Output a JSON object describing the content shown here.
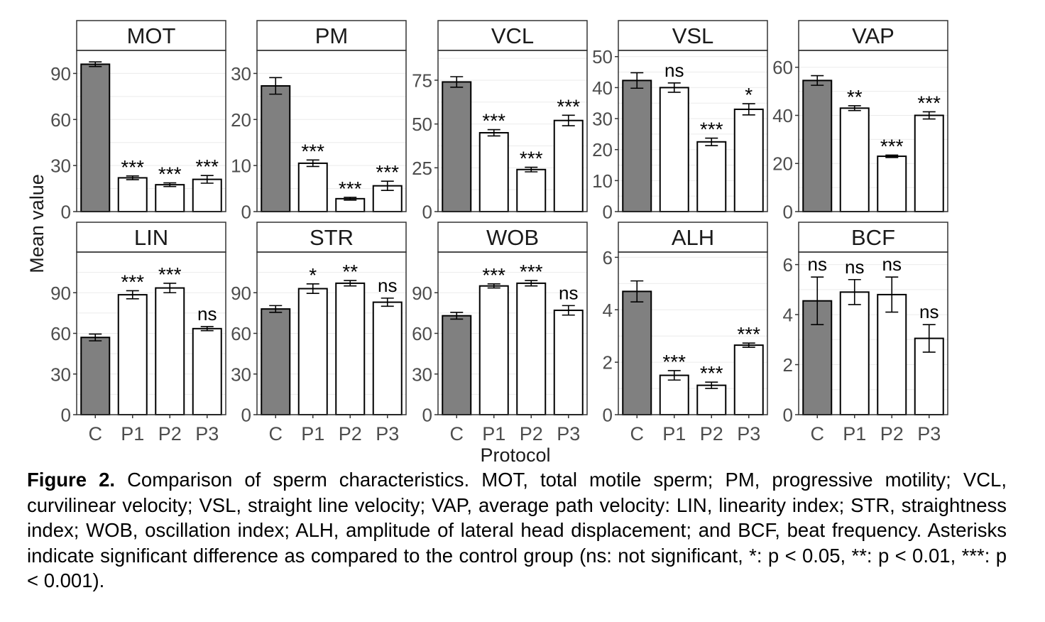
{
  "chart_data": {
    "type": "bar",
    "x_title": "Protocol",
    "y_title": "Mean value",
    "categories": [
      "C",
      "P1",
      "P2",
      "P3"
    ],
    "panels": [
      {
        "title": "MOT",
        "ylim": [
          0,
          105
        ],
        "ticks": [
          0,
          30,
          60,
          90
        ],
        "tick_labels": [
          "0",
          "30",
          "60",
          "90"
        ],
        "values": [
          96,
          22,
          17.5,
          21
        ],
        "errors": [
          1.5,
          1.2,
          1.2,
          2.5
        ],
        "significance": [
          "",
          "***",
          "***",
          "***"
        ]
      },
      {
        "title": "PM",
        "ylim": [
          0,
          35
        ],
        "ticks": [
          0,
          10,
          20,
          30
        ],
        "tick_labels": [
          "0",
          "10",
          "20",
          "30"
        ],
        "values": [
          27.3,
          10.5,
          2.8,
          5.6
        ],
        "errors": [
          1.8,
          0.7,
          0.3,
          1.0
        ],
        "significance": [
          "",
          "***",
          "***",
          "***"
        ]
      },
      {
        "title": "VCL",
        "ylim": [
          0,
          92
        ],
        "ticks": [
          0,
          25,
          50,
          75
        ],
        "tick_labels": [
          "0",
          "25",
          "50",
          "75"
        ],
        "values": [
          74,
          45,
          24,
          52
        ],
        "errors": [
          3,
          1.8,
          1.3,
          3
        ],
        "significance": [
          "",
          "***",
          "***",
          "***"
        ]
      },
      {
        "title": "VSL",
        "ylim": [
          0,
          52
        ],
        "ticks": [
          0,
          10,
          20,
          30,
          40,
          50
        ],
        "tick_labels": [
          "0",
          "10",
          "20",
          "30",
          "40",
          "50"
        ],
        "values": [
          42.3,
          40,
          22.5,
          33
        ],
        "errors": [
          2.5,
          1.5,
          1.2,
          1.8
        ],
        "significance": [
          "",
          "ns",
          "***",
          "*"
        ]
      },
      {
        "title": "VAP",
        "ylim": [
          0,
          67
        ],
        "ticks": [
          0,
          20,
          40,
          60
        ],
        "tick_labels": [
          "0",
          "20",
          "40",
          "60"
        ],
        "values": [
          54.5,
          43,
          23,
          40
        ],
        "errors": [
          2,
          1,
          0.5,
          1.5
        ],
        "significance": [
          "",
          "**",
          "***",
          "***"
        ]
      },
      {
        "title": "LIN",
        "ylim": [
          0,
          120
        ],
        "ticks": [
          0,
          30,
          60,
          90
        ],
        "tick_labels": [
          "0",
          "30",
          "60",
          "90"
        ],
        "values": [
          57,
          88.5,
          93.5,
          63.5
        ],
        "errors": [
          2.5,
          3,
          3.5,
          1.5
        ],
        "significance": [
          "",
          "***",
          "***",
          "ns"
        ]
      },
      {
        "title": "STR",
        "ylim": [
          0,
          120
        ],
        "ticks": [
          0,
          30,
          60,
          90
        ],
        "tick_labels": [
          "0",
          "30",
          "60",
          "90"
        ],
        "values": [
          78,
          93,
          97,
          83
        ],
        "errors": [
          2.5,
          3.5,
          2,
          3
        ],
        "significance": [
          "",
          "*",
          "**",
          "ns"
        ]
      },
      {
        "title": "WOB",
        "ylim": [
          0,
          120
        ],
        "ticks": [
          0,
          30,
          60,
          90
        ],
        "tick_labels": [
          "0",
          "30",
          "60",
          "90"
        ],
        "values": [
          73,
          95,
          97,
          77
        ],
        "errors": [
          2.5,
          1.5,
          2,
          3.5
        ],
        "significance": [
          "",
          "***",
          "***",
          "ns"
        ]
      },
      {
        "title": "ALH",
        "ylim": [
          0,
          6.2
        ],
        "ticks": [
          0,
          2,
          4,
          6
        ],
        "tick_labels": [
          "0",
          "2",
          "4",
          "6"
        ],
        "values": [
          4.7,
          1.5,
          1.12,
          2.65
        ],
        "errors": [
          0.4,
          0.18,
          0.12,
          0.08
        ],
        "significance": [
          "",
          "***",
          "***",
          "***"
        ]
      },
      {
        "title": "BCF",
        "ylim": [
          0,
          6.5
        ],
        "ticks": [
          0,
          2,
          4,
          6
        ],
        "tick_labels": [
          "0",
          "2",
          "4",
          "6"
        ],
        "values": [
          4.55,
          4.9,
          4.8,
          3.05
        ],
        "errors": [
          0.95,
          0.5,
          0.7,
          0.55
        ],
        "significance": [
          "ns",
          "ns",
          "ns",
          "ns"
        ]
      }
    ]
  },
  "caption": {
    "label": "Figure 2.",
    "text": "Comparison of sperm characteristics. MOT, total motile sperm; PM, progressive motility; VCL, curvilinear velocity; VSL, straight line velocity; VAP, average path velocity: LIN, linearity index; STR, straightness index; WOB, oscillation index; ALH, amplitude of lateral head displacement; and BCF, beat frequency. Asterisks indicate significant difference as compared to the control group (ns: not significant, *: p < 0.05, **: p < 0.01, ***: p < 0.001)."
  },
  "colors": {
    "control_bar": "#808080",
    "protocol_bar": "#ffffff",
    "border": "#333333",
    "gridline": "#ebebeb",
    "strip_fill": "#ffffff"
  }
}
